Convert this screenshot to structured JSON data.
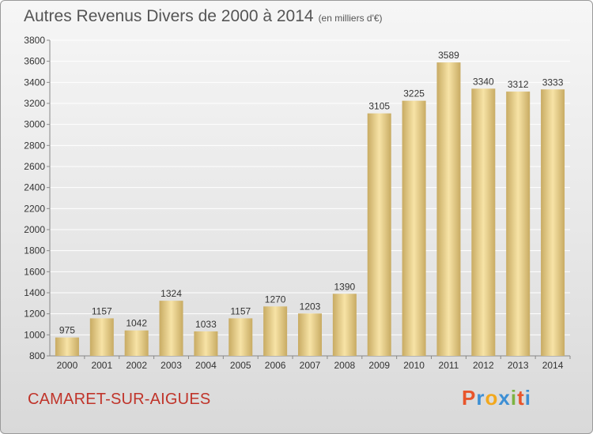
{
  "header": {
    "title": "Autres Revenus Divers de 2000 à 2014",
    "subtitle": "(en milliers d'€)"
  },
  "footer": {
    "town": "CAMARET-SUR-AIGUES",
    "brand": "Proxiti",
    "brand_colors": [
      "#e8552b",
      "#3d8fd4",
      "#f2a81d",
      "#3d8fd4",
      "#7cb342",
      "#e8552b",
      "#3d8fd4"
    ]
  },
  "colors": {
    "bar_light": "#f7e3a6",
    "bar_dark": "#c8ab63",
    "grid": "#ffffff",
    "axis_text": "#333333"
  },
  "chart_data": {
    "type": "bar",
    "title": "Autres Revenus Divers de 2000 à 2014",
    "subtitle": "(en milliers d'€)",
    "categories": [
      "2000",
      "2001",
      "2002",
      "2003",
      "2004",
      "2005",
      "2006",
      "2007",
      "2008",
      "2009",
      "2010",
      "2011",
      "2012",
      "2013",
      "2014"
    ],
    "values": [
      975,
      1157,
      1042,
      1324,
      1033,
      1157,
      1270,
      1203,
      1390,
      3105,
      3225,
      3589,
      3340,
      3312,
      3333
    ],
    "ylim": [
      800,
      3800
    ],
    "ytick_step": 200,
    "grid": true,
    "data_labels": true
  }
}
